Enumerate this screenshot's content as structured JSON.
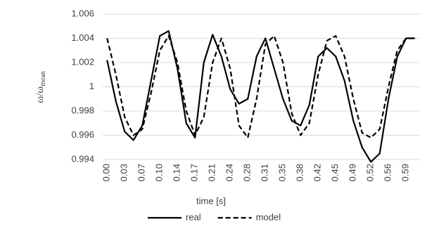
{
  "chart_data": {
    "type": "line",
    "y_label": "ω/ω",
    "y_label_sub": "mean",
    "x_label": "time [s]",
    "categories": [
      "0.00",
      null,
      "0.03",
      null,
      "0.07",
      null,
      "0.10",
      null,
      "0.14",
      null,
      "0.17",
      null,
      "0.21",
      null,
      "0.24",
      null,
      "0.28",
      null,
      "0.31",
      null,
      "0.35",
      null,
      "0.38",
      null,
      "0.42",
      null,
      "0.45",
      null,
      "0.49",
      null,
      "0.52",
      null,
      "0.56",
      null,
      "0.59",
      null
    ],
    "series": [
      {
        "name": "real",
        "color": "#000000",
        "line_style": "solid",
        "values": [
          1.0022,
          0.9988,
          0.9963,
          0.9956,
          0.9968,
          1.0005,
          1.0042,
          1.0046,
          1.0015,
          0.997,
          0.9958,
          1.002,
          1.0043,
          1.0025,
          0.9998,
          0.9986,
          0.999,
          1.0025,
          1.004,
          1.0015,
          0.999,
          0.9972,
          0.9968,
          0.9985,
          1.0025,
          1.0032,
          1.0025,
          1.0005,
          0.9972,
          0.995,
          0.9938,
          0.9945,
          0.999,
          1.0025,
          1.004,
          1.004
        ]
      },
      {
        "name": "model",
        "color": "#000000",
        "line_style": "dashed",
        "values": [
          1.004,
          1.001,
          0.9975,
          0.996,
          0.9965,
          0.9995,
          1.003,
          1.0042,
          1.002,
          0.998,
          0.996,
          0.9975,
          1.002,
          1.004,
          1.0015,
          0.9968,
          0.9958,
          0.999,
          1.0035,
          1.0042,
          1.002,
          0.9978,
          0.996,
          0.997,
          1.001,
          1.0038,
          1.0042,
          1.0025,
          0.999,
          0.9962,
          0.9958,
          0.9965,
          1.0,
          1.003,
          1.004,
          1.004
        ]
      }
    ],
    "ylim": [
      0.994,
      1.006
    ],
    "yticks": [
      0.994,
      0.996,
      0.998,
      1,
      1.002,
      1.004,
      1.006
    ],
    "grid": true,
    "legend": "bottom"
  }
}
